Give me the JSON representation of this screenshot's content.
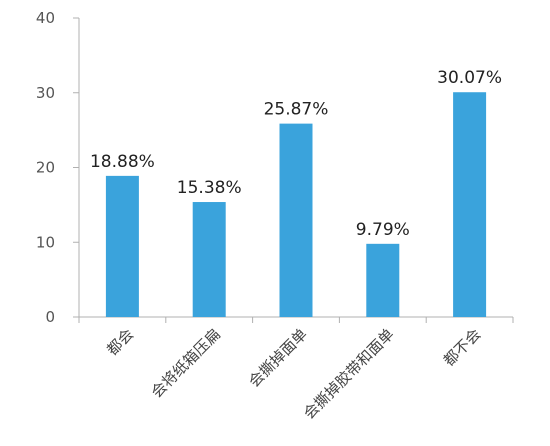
{
  "chart_data": {
    "type": "bar",
    "categories": [
      "都会",
      "会将纸箱压扁",
      "会撕掉面单",
      "会撕掉胶带和面单",
      "都不会"
    ],
    "values": [
      18.88,
      15.38,
      25.87,
      9.79,
      30.07
    ],
    "data_labels": [
      "18.88%",
      "15.38%",
      "25.87%",
      "9.79%",
      "30.07%"
    ],
    "ylim": [
      0,
      40
    ],
    "yticks": [
      0,
      10,
      20,
      30,
      40
    ],
    "grid": false,
    "legend": "none",
    "bar_color": "#3aa3dc",
    "axis_color": "#b0b0b0"
  }
}
